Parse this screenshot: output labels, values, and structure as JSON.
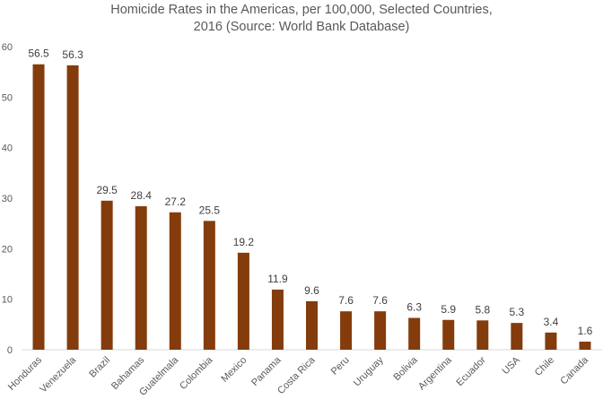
{
  "chart_data": {
    "type": "bar",
    "title": "Homicide Rates in the Americas, per 100,000, Selected Countries, 2016 (Source: World Bank Database)",
    "categories": [
      "Honduras",
      "Venezuela",
      "Brazil",
      "Bahamas",
      "Guatelmala",
      "Colombia",
      "Mexico",
      "Panama",
      "Costa Rica",
      "Peru",
      "Uruguay",
      "Bolivia",
      "Argentina",
      "Ecuador",
      "USA",
      "Chile",
      "Canada"
    ],
    "values": [
      56.5,
      56.3,
      29.5,
      28.4,
      27.2,
      25.5,
      19.2,
      11.9,
      9.6,
      7.6,
      7.6,
      6.3,
      5.9,
      5.8,
      5.3,
      3.4,
      1.6
    ],
    "color": "#843c0c",
    "ylim": [
      0,
      60
    ],
    "yticks": [
      0,
      10,
      20,
      30,
      40,
      50,
      60
    ],
    "grid": false
  }
}
